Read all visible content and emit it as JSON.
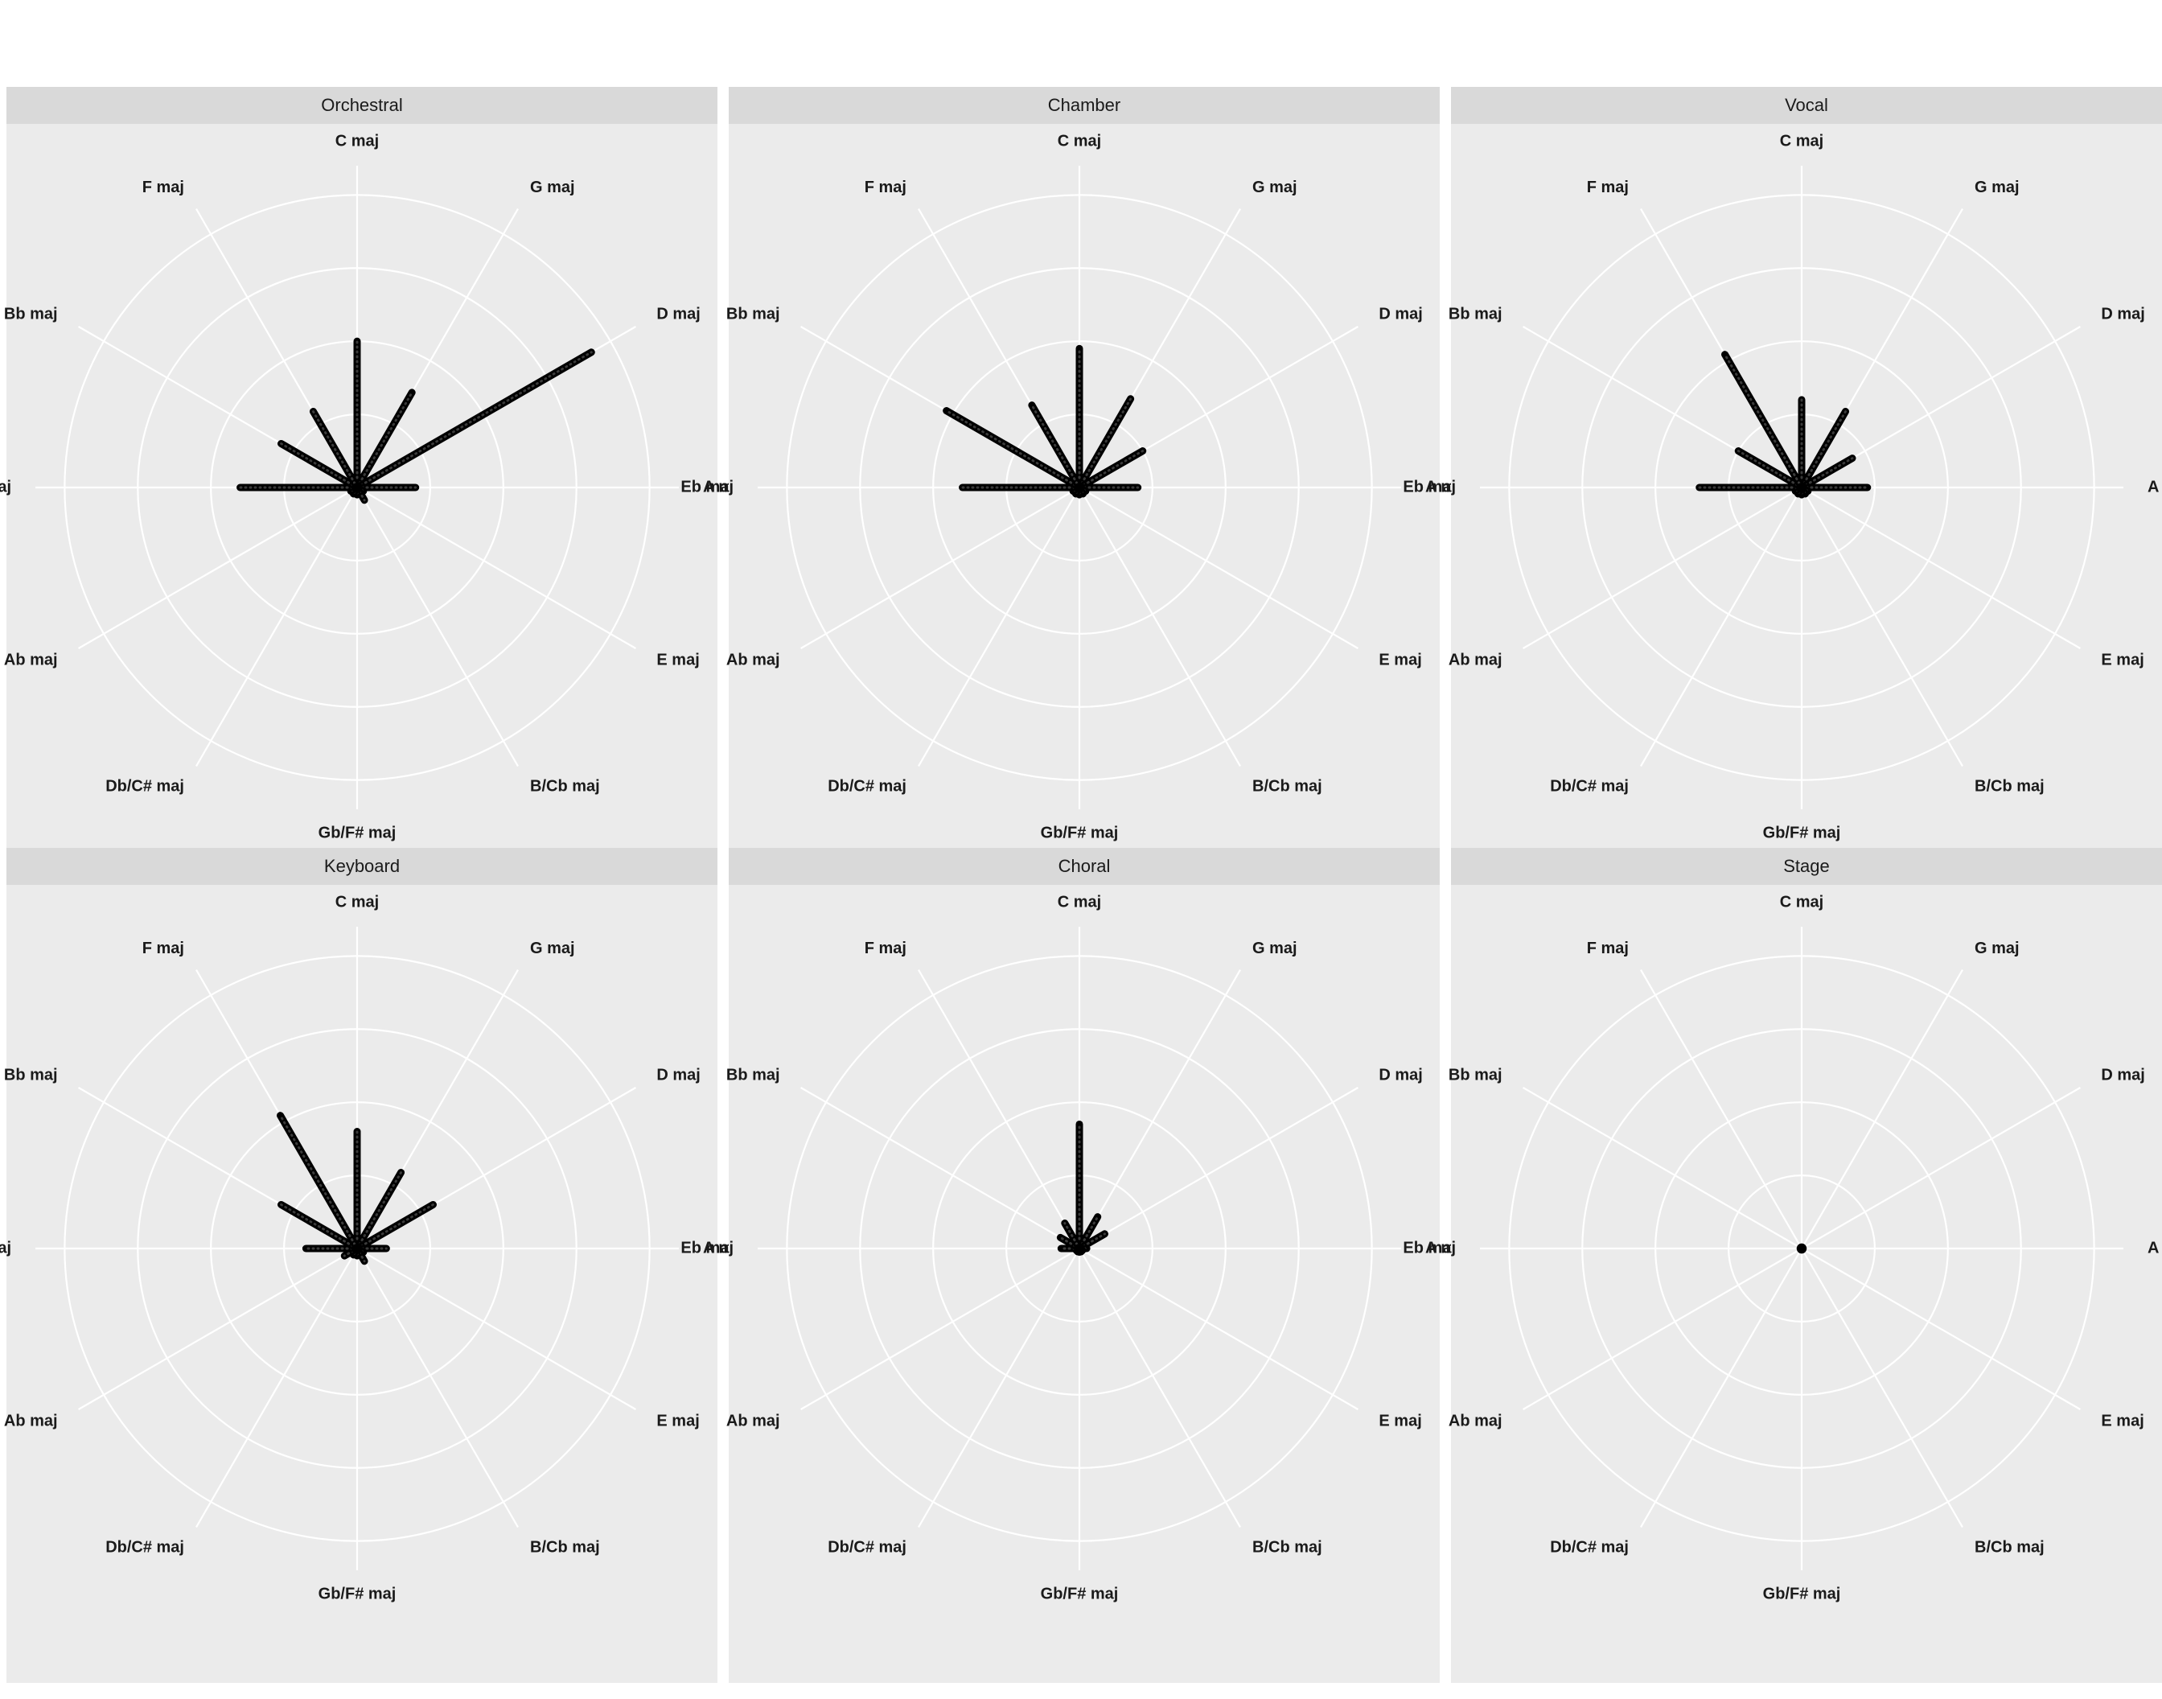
{
  "chart_data": {
    "type": "radar",
    "description_axis": "angular axis = major keys (circle of fifths), radial = count",
    "keys": [
      "C maj",
      "G maj",
      "D maj",
      "A maj",
      "E maj",
      "B/Cb maj",
      "Gb/F# maj",
      "Db/C# maj",
      "Ab maj",
      "Eb maj",
      "Bb maj",
      "F maj"
    ],
    "rlim": [
      0,
      4.4
    ],
    "grid_rings": [
      1,
      2,
      3,
      4
    ],
    "grid": true,
    "line_color": "#000000",
    "panels": [
      {
        "title": "Orchestral",
        "values": [
          2.0,
          1.5,
          3.7,
          0.8,
          0.1,
          0.2,
          0.1,
          0.1,
          0.1,
          1.6,
          1.2,
          1.2
        ]
      },
      {
        "title": "Chamber",
        "values": [
          1.9,
          1.4,
          1.0,
          0.8,
          0.1,
          0.1,
          0.1,
          0.1,
          0.1,
          1.6,
          2.1,
          1.3
        ]
      },
      {
        "title": "Vocal",
        "values": [
          1.2,
          1.2,
          0.8,
          0.9,
          0.1,
          0.1,
          0.1,
          0.1,
          0.1,
          1.4,
          1.0,
          2.1
        ]
      },
      {
        "title": "Keyboard",
        "values": [
          1.6,
          1.2,
          1.2,
          0.4,
          0.1,
          0.2,
          0.1,
          0.1,
          0.2,
          0.7,
          1.2,
          2.1
        ]
      },
      {
        "title": "Choral",
        "values": [
          1.7,
          0.5,
          0.4,
          0.1,
          0.05,
          0.05,
          0.05,
          0.05,
          0.05,
          0.25,
          0.3,
          0.4
        ]
      },
      {
        "title": "Stage",
        "values": [
          0.02,
          0.02,
          0.02,
          0.02,
          0.02,
          0.02,
          0.02,
          0.02,
          0.02,
          0.02,
          0.02,
          0.02
        ]
      }
    ]
  }
}
